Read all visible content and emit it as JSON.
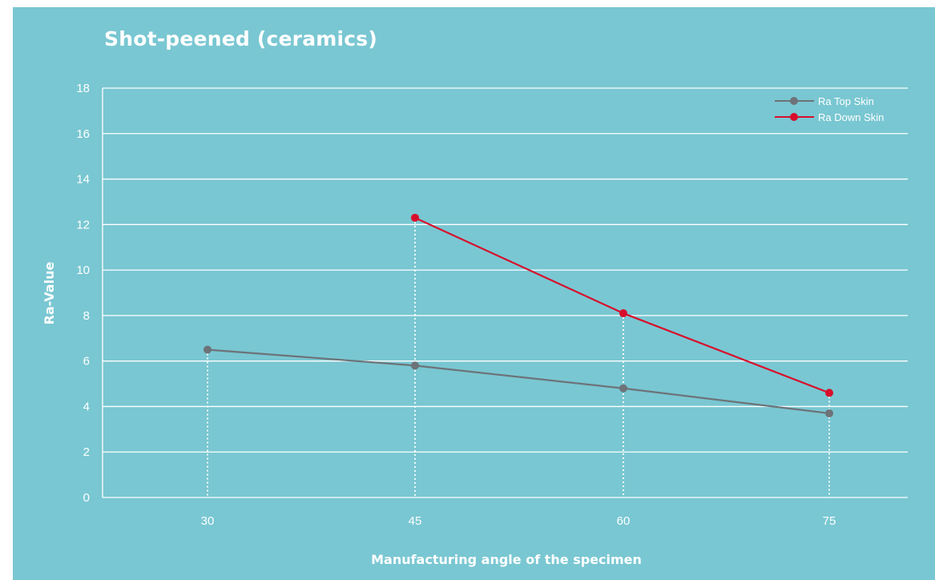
{
  "chart_data": {
    "type": "line",
    "title": "Shot-peened (ceramics)",
    "xlabel": "Manufacturing angle of the specimen",
    "ylabel": "Ra-Value",
    "categories": [
      "30",
      "45",
      "60",
      "75"
    ],
    "ylim": [
      0,
      18
    ],
    "yticks": [
      "0",
      "2",
      "4",
      "6",
      "8",
      "10",
      "12",
      "14",
      "16",
      "18"
    ],
    "grid": true,
    "legend_position": "top-right",
    "series": [
      {
        "name": "Ra Top Skin",
        "color": "#6d7378",
        "values": [
          6.5,
          5.8,
          4.8,
          3.7
        ]
      },
      {
        "name": "Ra Down Skin",
        "color": "#d80f2c",
        "values": [
          null,
          12.3,
          8.1,
          4.6
        ]
      }
    ]
  }
}
